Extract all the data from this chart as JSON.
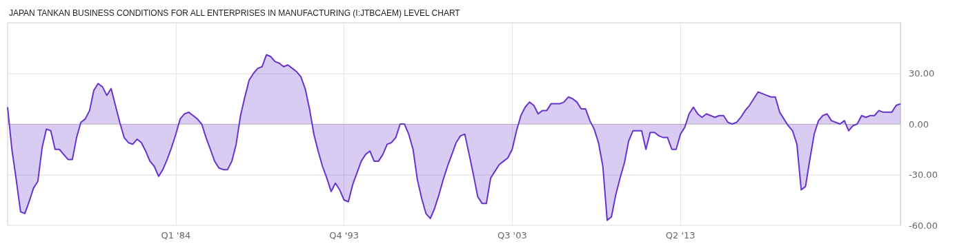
{
  "chart_data": {
    "type": "area",
    "title": "JAPAN TANKAN BUSINESS CONDITIONS FOR ALL ENTERPRISES IN MANUFACTURING (I:JTBCAEM) LEVEL CHART",
    "x": [
      "1974-04",
      "1974-07",
      "1974-10",
      "1975-01",
      "1975-04",
      "1975-07",
      "1975-10",
      "1976-01",
      "1976-04",
      "1976-07",
      "1976-10",
      "1977-01",
      "1977-04",
      "1977-07",
      "1977-10",
      "1978-01",
      "1978-04",
      "1978-07",
      "1978-10",
      "1979-01",
      "1979-04",
      "1979-07",
      "1979-10",
      "1980-01",
      "1980-04",
      "1980-07",
      "1980-10",
      "1981-01",
      "1981-04",
      "1981-07",
      "1981-10",
      "1982-01",
      "1982-04",
      "1982-07",
      "1982-10",
      "1983-01",
      "1983-04",
      "1983-07",
      "1983-10",
      "1984-01",
      "1984-04",
      "1984-07",
      "1984-10",
      "1985-01",
      "1985-04",
      "1985-07",
      "1985-10",
      "1986-01",
      "1986-04",
      "1986-07",
      "1986-10",
      "1987-01",
      "1987-04",
      "1987-07",
      "1987-10",
      "1988-01",
      "1988-04",
      "1988-07",
      "1988-10",
      "1989-01",
      "1989-04",
      "1989-07",
      "1989-10",
      "1990-01",
      "1990-04",
      "1990-07",
      "1990-10",
      "1991-01",
      "1991-04",
      "1991-07",
      "1991-10",
      "1992-01",
      "1992-04",
      "1992-07",
      "1992-10",
      "1993-01",
      "1993-04",
      "1993-07",
      "1993-10",
      "1994-01",
      "1994-04",
      "1994-07",
      "1994-10",
      "1995-01",
      "1995-04",
      "1995-07",
      "1995-10",
      "1996-01",
      "1996-04",
      "1996-07",
      "1996-10",
      "1997-01",
      "1997-04",
      "1997-07",
      "1997-10",
      "1998-01",
      "1998-04",
      "1998-07",
      "1998-10",
      "1999-01",
      "1999-04",
      "1999-07",
      "1999-10",
      "2000-01",
      "2000-04",
      "2000-07",
      "2000-10",
      "2001-01",
      "2001-04",
      "2001-07",
      "2001-10",
      "2002-01",
      "2002-04",
      "2002-07",
      "2002-10",
      "2003-01",
      "2003-04",
      "2003-07",
      "2003-10",
      "2004-01",
      "2004-04",
      "2004-07",
      "2004-10",
      "2005-01",
      "2005-04",
      "2005-07",
      "2005-10",
      "2006-01",
      "2006-04",
      "2006-07",
      "2006-10",
      "2007-01",
      "2007-04",
      "2007-07",
      "2007-10",
      "2008-01",
      "2008-04",
      "2008-07",
      "2008-10",
      "2009-01",
      "2009-04",
      "2009-07",
      "2009-10",
      "2010-01",
      "2010-04",
      "2010-07",
      "2010-10",
      "2011-01",
      "2011-04",
      "2011-07",
      "2011-10",
      "2012-01",
      "2012-04",
      "2012-07",
      "2012-10",
      "2013-01",
      "2013-04",
      "2013-07",
      "2013-10",
      "2014-01",
      "2014-04",
      "2014-07",
      "2014-10",
      "2015-01",
      "2015-04",
      "2015-07",
      "2015-10",
      "2016-01",
      "2016-04",
      "2016-07",
      "2016-10",
      "2017-01",
      "2017-04",
      "2017-07",
      "2017-10",
      "2018-01",
      "2018-04",
      "2018-07",
      "2018-10",
      "2019-01",
      "2019-04",
      "2019-07",
      "2019-10",
      "2020-01",
      "2020-04",
      "2020-07",
      "2020-10",
      "2021-01",
      "2021-04",
      "2021-07",
      "2021-10",
      "2022-01",
      "2022-04",
      "2022-07",
      "2022-10",
      "2023-01",
      "2023-04",
      "2023-07",
      "2023-10",
      "2024-01",
      "2024-04",
      "2024-07",
      "2024-10",
      "2025-01",
      "2025-04",
      "2025-07",
      "2025-10",
      "2026-01"
    ],
    "series": [
      {
        "color": "#6633cc",
        "values": [
          10,
          -15,
          -33,
          -52,
          -53,
          -46,
          -38,
          -34,
          -14,
          -3,
          -4,
          -15,
          -15,
          -18,
          -21,
          -21,
          -8,
          1,
          3,
          8,
          20,
          24,
          22,
          17,
          21,
          11,
          1,
          -8,
          -11,
          -12,
          -9,
          -11,
          -16,
          -22,
          -25,
          -31,
          -27,
          -21,
          -14,
          -6,
          3,
          6,
          7,
          5,
          3,
          0,
          -8,
          -15,
          -22,
          -26,
          -27,
          -27,
          -22,
          -12,
          5,
          16,
          26,
          30,
          33,
          34,
          41,
          40,
          37,
          36,
          34,
          35,
          33,
          31,
          28,
          21,
          9,
          -6,
          -16,
          -25,
          -32,
          -40,
          -35,
          -39,
          -45,
          -46,
          -36,
          -29,
          -22,
          -18,
          -16,
          -22,
          -22,
          -18,
          -12,
          -11,
          -8,
          0,
          0,
          -6,
          -15,
          -33,
          -44,
          -53,
          -56,
          -50,
          -42,
          -33,
          -25,
          -18,
          -11,
          -7,
          -6,
          -18,
          -30,
          -43,
          -47,
          -47,
          -32,
          -28,
          -24,
          -22,
          -20,
          -15,
          -4,
          5,
          10,
          13,
          11,
          6,
          8,
          8,
          12,
          12,
          12,
          13,
          16,
          15,
          13,
          9,
          9,
          2,
          -3,
          -11,
          -25,
          -57,
          -55,
          -42,
          -32,
          -23,
          -10,
          -4,
          -4,
          -4,
          -15,
          -5,
          -5,
          -7,
          -8,
          -8,
          -15,
          -15,
          -6,
          -2,
          6,
          10,
          6,
          4,
          6,
          5,
          4,
          5,
          5,
          1,
          0,
          1,
          4,
          8,
          11,
          15,
          19,
          18,
          17,
          16,
          16,
          7,
          3,
          -1,
          -4,
          -12,
          -39,
          -37,
          -21,
          -6,
          2,
          5,
          6,
          2,
          1,
          0,
          2,
          -4,
          -1,
          0,
          5,
          4,
          5,
          5,
          8,
          7,
          7,
          7,
          11,
          12
        ]
      }
    ],
    "xlim": [
      "1974-04",
      "2026-01"
    ],
    "xticks": [
      {
        "value": "1984-01",
        "label": "Q1 '84"
      },
      {
        "value": "1993-10",
        "label": "Q4 '93"
      },
      {
        "value": "2003-07",
        "label": "Q3 '03"
      },
      {
        "value": "2013-04",
        "label": "Q2 '13"
      }
    ],
    "ylim": [
      -60,
      60
    ],
    "yticks": [
      {
        "value": -60,
        "label": "-60.00"
      },
      {
        "value": -30,
        "label": "-30.00"
      },
      {
        "value": 0,
        "label": "0.00"
      },
      {
        "value": 30,
        "label": "30.00"
      }
    ],
    "grid": true
  }
}
